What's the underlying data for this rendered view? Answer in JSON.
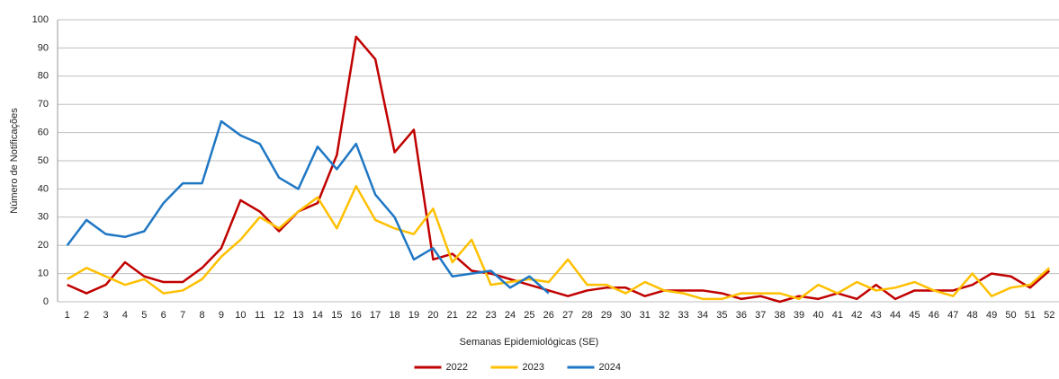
{
  "chart_data": {
    "type": "line",
    "x_label": "Semanas Epidemiológicas (SE)",
    "y_label": "Número de Notificações",
    "categories": [
      "1",
      "2",
      "3",
      "4",
      "5",
      "6",
      "7",
      "8",
      "9",
      "10",
      "11",
      "12",
      "13",
      "14",
      "15",
      "16",
      "17",
      "18",
      "19",
      "20",
      "21",
      "22",
      "23",
      "24",
      "25",
      "26",
      "27",
      "28",
      "29",
      "30",
      "31",
      "32",
      "33",
      "34",
      "35",
      "36",
      "37",
      "38",
      "39",
      "40",
      "41",
      "42",
      "43",
      "44",
      "45",
      "46",
      "47",
      "48",
      "49",
      "50",
      "51",
      "52"
    ],
    "series": [
      {
        "name": "2022",
        "color": "#c00000",
        "values": [
          6,
          3,
          6,
          14,
          9,
          7,
          7,
          12,
          19,
          36,
          32,
          25,
          32,
          35,
          52,
          94,
          86,
          53,
          61,
          15,
          17,
          11,
          10,
          8,
          6,
          4,
          2,
          4,
          5,
          5,
          2,
          4,
          4,
          4,
          3,
          1,
          2,
          0,
          2,
          1,
          3,
          1,
          6,
          1,
          4,
          4,
          4,
          6,
          10,
          9,
          5,
          11
        ]
      },
      {
        "name": "2023",
        "color": "#ffc000",
        "values": [
          8,
          12,
          9,
          6,
          8,
          3,
          4,
          8,
          16,
          22,
          30,
          26,
          32,
          37,
          26,
          41,
          29,
          26,
          24,
          33,
          14,
          22,
          6,
          7,
          8,
          7,
          15,
          6,
          6,
          3,
          7,
          4,
          3,
          1,
          1,
          3,
          3,
          3,
          1,
          6,
          3,
          7,
          4,
          5,
          7,
          4,
          2,
          10,
          2,
          5,
          6,
          12
        ]
      },
      {
        "name": "2024",
        "color": "#1f77c4",
        "values": [
          20,
          29,
          24,
          23,
          25,
          35,
          42,
          42,
          64,
          59,
          56,
          44,
          40,
          55,
          47,
          56,
          38,
          30,
          15,
          19,
          9,
          10,
          11,
          5,
          9,
          3,
          null,
          null,
          null,
          null,
          null,
          null,
          null,
          null,
          null,
          null,
          null,
          null,
          null,
          null,
          null,
          null,
          null,
          null,
          null,
          null,
          null,
          null,
          null,
          null,
          null,
          null
        ]
      }
    ],
    "ylim": [
      0,
      100
    ],
    "yticks": [
      0,
      10,
      20,
      30,
      40,
      50,
      60,
      70,
      80,
      90,
      100
    ],
    "grid": true,
    "legend": "bottom"
  }
}
